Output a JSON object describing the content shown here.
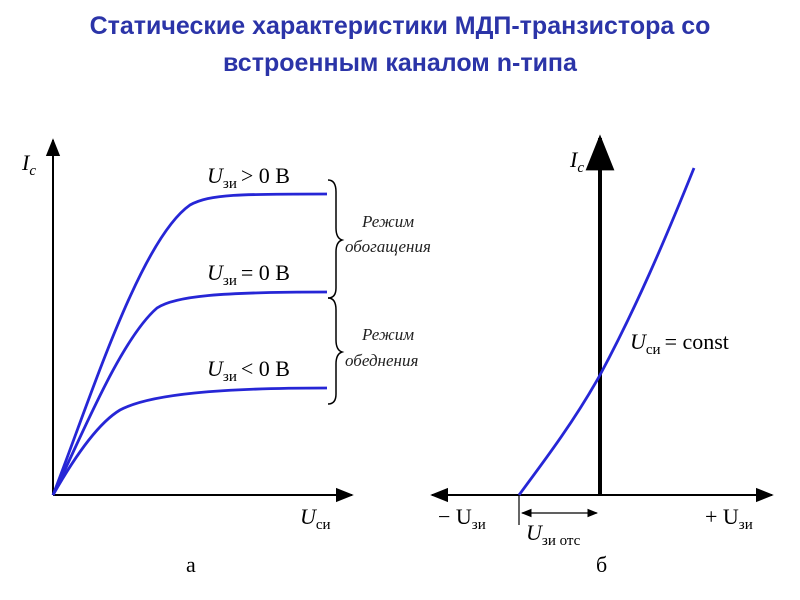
{
  "title": {
    "line1": "Статические характеристики МДП-транзистора со",
    "line2": "встроенным каналом n-типа"
  },
  "colors": {
    "title": "#2b34a8",
    "curve": "#2626d6",
    "axis": "#000000"
  },
  "diagram_a": {
    "y_axis_main": "I",
    "y_axis_sub": "c",
    "x_axis_main": "U",
    "x_axis_sub": "си",
    "caption": "а",
    "curves": [
      {
        "main": "U",
        "sub": "зи",
        "rel": "> 0 В"
      },
      {
        "main": "U",
        "sub": "зи",
        "rel": "= 0 В"
      },
      {
        "main": "U",
        "sub": "зи",
        "rel": "< 0 В"
      }
    ],
    "modes": [
      {
        "line1": "Режим",
        "line2": "обогащения"
      },
      {
        "line1": "Режим",
        "line2": "обеднения"
      }
    ]
  },
  "diagram_b": {
    "y_axis_main": "I",
    "y_axis_sub": "c",
    "neg_main": "− U",
    "neg_sub": "зи",
    "pos_main": "+ U",
    "pos_sub": "зи",
    "cutoff_main": "U",
    "cutoff_sub": "зи отс",
    "curve_main": "U",
    "curve_sub": "си",
    "curve_rel": "= const",
    "caption": "б"
  }
}
